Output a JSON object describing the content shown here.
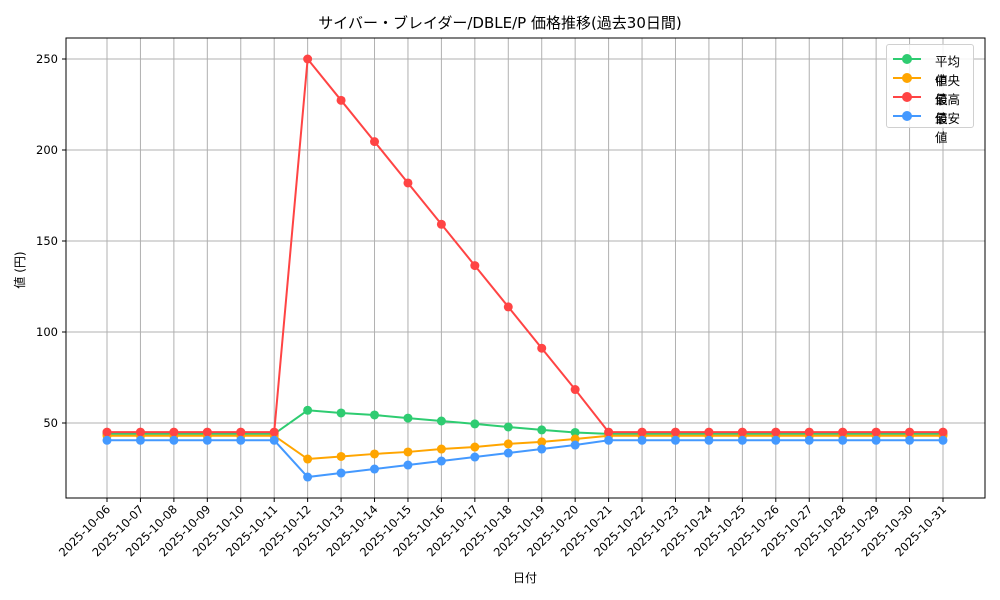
{
  "title": "サイバー・ブレイダー/DBLE/P 価格推移(過去30日間)",
  "chart_data": {
    "type": "line",
    "title": "サイバー・ブレイダー/DBLE/P 価格推移(過去30日間)",
    "xlabel": "日付",
    "ylabel": "値 (円)",
    "ylim": [
      10,
      262
    ],
    "yticks": [
      50,
      100,
      150,
      200,
      250
    ],
    "grid": true,
    "legend_position": "upper right",
    "x": [
      "2025-10-06",
      "2025-10-07",
      "2025-10-08",
      "2025-10-09",
      "2025-10-10",
      "2025-10-11",
      "2025-10-12",
      "2025-10-13",
      "2025-10-14",
      "2025-10-15",
      "2025-10-16",
      "2025-10-17",
      "2025-10-18",
      "2025-10-19",
      "2025-10-20",
      "2025-10-21",
      "2025-10-22",
      "2025-10-23",
      "2025-10-24",
      "2025-10-25",
      "2025-10-26",
      "2025-10-27",
      "2025-10-28",
      "2025-10-29",
      "2025-10-30",
      "2025-10-31"
    ],
    "series": [
      {
        "name": "平均値",
        "color": "#2ecc71",
        "values": [
          44,
          44,
          44,
          44,
          44,
          44,
          57,
          55.5,
          54.4,
          52.7,
          51.1,
          49.5,
          47.8,
          46.2,
          44.8,
          44,
          44,
          44,
          44,
          44,
          44,
          44,
          44,
          44,
          44,
          44
        ]
      },
      {
        "name": "中央値",
        "color": "#ffa500",
        "values": [
          43,
          43,
          43,
          43,
          43,
          43,
          30.2,
          31.6,
          33,
          34.1,
          35.7,
          36.8,
          38.5,
          39.6,
          41.2,
          43,
          43,
          43,
          43,
          43,
          43,
          43,
          43,
          43,
          43,
          43
        ]
      },
      {
        "name": "最高値",
        "color": "#ff4444",
        "values": [
          45,
          45,
          45,
          45,
          45,
          45,
          250,
          227.3,
          204.6,
          181.9,
          159.2,
          136.5,
          113.8,
          91.1,
          68.4,
          45,
          45,
          45,
          45,
          45,
          45,
          45,
          45,
          45,
          45,
          45
        ]
      },
      {
        "name": "最安値",
        "color": "#4499ff",
        "values": [
          40.5,
          40.5,
          40.5,
          40.5,
          40.5,
          40.5,
          20.3,
          22.5,
          24.7,
          26.9,
          29.1,
          31.3,
          33.5,
          35.7,
          37.9,
          40.5,
          40.5,
          40.5,
          40.5,
          40.5,
          40.5,
          40.5,
          40.5,
          40.5,
          40.5,
          40.5
        ]
      }
    ]
  }
}
